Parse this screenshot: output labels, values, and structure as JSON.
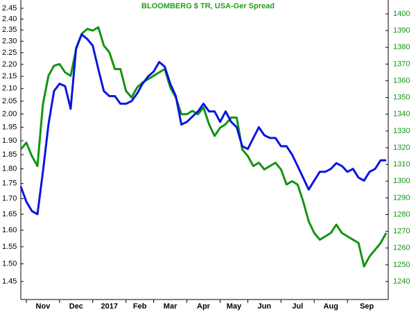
{
  "chart_data": {
    "type": "line",
    "title": "BLOOMBERG $ TR, USA-Ger Spread",
    "title_color": "#1f9e1f",
    "ylog": true,
    "ylim": [
      1.45,
      2.45
    ],
    "yticks": [
      {
        "value": 2.45,
        "label": "2.45"
      },
      {
        "value": 2.4,
        "label": "2.40"
      },
      {
        "value": 2.35,
        "label": "2.35"
      },
      {
        "value": 2.3,
        "label": "2.30"
      },
      {
        "value": 2.25,
        "label": "2.25"
      },
      {
        "value": 2.2,
        "label": "2.20"
      },
      {
        "value": 2.15,
        "label": "2.15"
      },
      {
        "value": 2.1,
        "label": "2.10"
      },
      {
        "value": 2.05,
        "label": "2.05"
      },
      {
        "value": 2.0,
        "label": "2.00"
      },
      {
        "value": 1.95,
        "label": "1.95"
      },
      {
        "value": 1.9,
        "label": "1.90"
      },
      {
        "value": 1.85,
        "label": "1.85"
      },
      {
        "value": 1.8,
        "label": "1.80"
      },
      {
        "value": 1.75,
        "label": "1.75"
      },
      {
        "value": 1.7,
        "label": "1.70"
      },
      {
        "value": 1.65,
        "label": "1.65"
      },
      {
        "value": 1.6,
        "label": "1.60"
      },
      {
        "value": 1.55,
        "label": "1.55"
      },
      {
        "value": 1.5,
        "label": "1.50"
      },
      {
        "value": 1.45,
        "label": "1.45"
      }
    ],
    "y2lim": [
      1240,
      1400
    ],
    "y2ticks": [
      1400,
      1390,
      1380,
      1370,
      1360,
      1350,
      1340,
      1330,
      1320,
      1310,
      1300,
      1290,
      1280,
      1270,
      1260,
      1250,
      1240
    ],
    "categories": [
      null,
      "Nov",
      null,
      null,
      null,
      null,
      null,
      "Dec",
      null,
      null,
      null,
      null,
      null,
      "2017",
      null,
      null,
      null,
      null,
      null,
      "Feb",
      null,
      null,
      null,
      null,
      "Mar",
      null,
      null,
      null,
      null,
      null,
      "Apr",
      null,
      null,
      null,
      null,
      null,
      "May",
      null,
      null,
      null,
      null,
      "Jun",
      null,
      null,
      null,
      null,
      null,
      "Jul",
      null,
      null,
      null,
      null,
      null,
      "Aug",
      null,
      null,
      null,
      null,
      null,
      "Sep",
      null,
      null,
      null,
      null,
      null,
      null,
      null
    ],
    "series": [
      {
        "color": "#0a14e0",
        "axis": "y",
        "values": [
          1.74,
          1.69,
          1.66,
          1.65,
          1.79,
          1.96,
          2.09,
          2.12,
          2.11,
          2.02,
          2.27,
          2.33,
          2.31,
          2.28,
          2.18,
          2.09,
          2.07,
          2.07,
          2.04,
          2.04,
          2.05,
          2.08,
          2.12,
          2.15,
          2.17,
          2.21,
          2.19,
          2.12,
          2.07,
          1.96,
          1.97,
          1.99,
          2.01,
          2.04,
          2.01,
          2.01,
          1.97,
          2.01,
          1.97,
          1.95,
          1.88,
          1.87,
          1.91,
          1.95,
          1.92,
          1.91,
          1.91,
          1.88,
          1.88,
          1.85,
          1.81,
          1.77,
          1.73,
          1.76,
          1.79,
          1.79,
          1.8,
          1.82,
          1.81,
          1.79,
          1.8,
          1.77,
          1.76,
          1.79,
          1.8,
          1.83,
          1.83
        ]
      },
      {
        "color": "#129412",
        "axis": "y2",
        "values": [
          1319,
          1323,
          1315,
          1309,
          1346,
          1363,
          1369,
          1370,
          1365,
          1363,
          1379,
          1388,
          1391,
          1390,
          1392,
          1381,
          1377,
          1367,
          1367,
          1354,
          1350,
          1356,
          1359,
          1361,
          1363,
          1365,
          1367,
          1356,
          1350,
          1340,
          1340,
          1342,
          1340,
          1344,
          1334,
          1327,
          1332,
          1334,
          1338,
          1338,
          1319,
          1315,
          1309,
          1311,
          1307,
          1309,
          1311,
          1307,
          1298,
          1300,
          1298,
          1288,
          1276,
          1269,
          1265,
          1267,
          1269,
          1274,
          1269,
          1267,
          1265,
          1263,
          1249,
          1255,
          1259,
          1263,
          1269
        ]
      }
    ],
    "y2_label_color": "#129412"
  }
}
